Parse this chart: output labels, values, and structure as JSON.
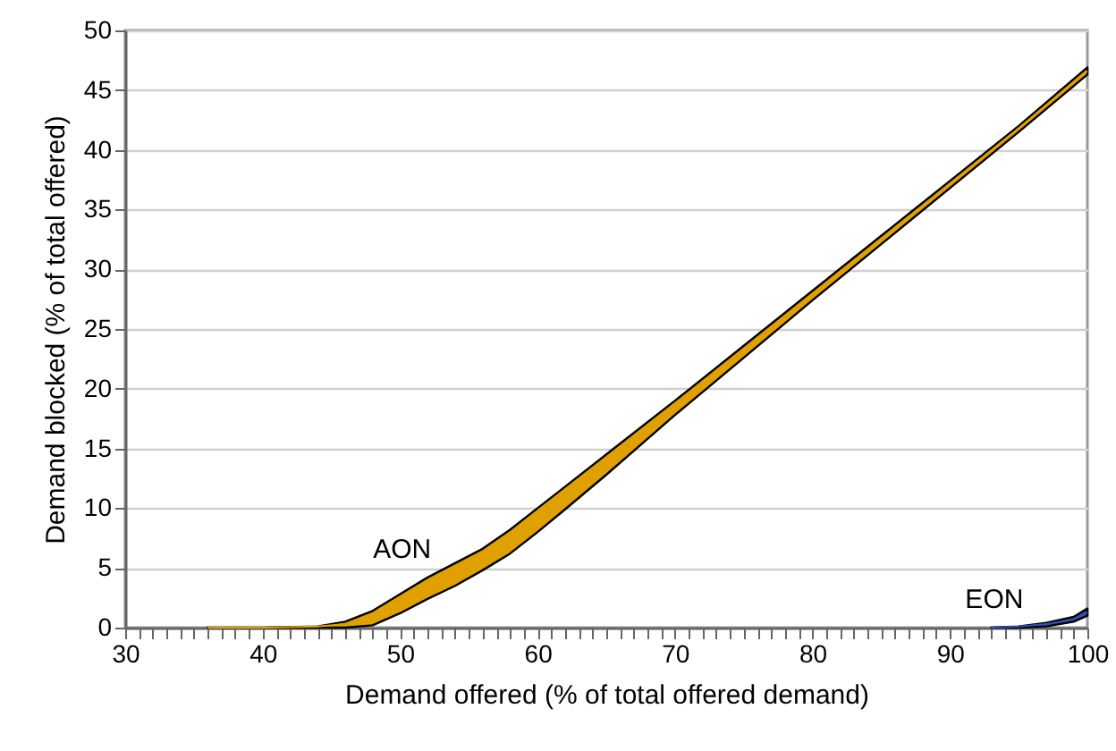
{
  "chart_data": {
    "type": "line",
    "xlabel": "Demand offered (% of total offered demand)",
    "ylabel": "Demand blocked (% of total offered)",
    "xlim": [
      30,
      100
    ],
    "ylim": [
      0,
      50
    ],
    "xticks": [
      30,
      {
        "value": 31,
        "label": null
      },
      {
        "value": 32,
        "label": null
      },
      {
        "value": 33,
        "label": null
      },
      {
        "value": 34,
        "label": null
      },
      {
        "value": 35,
        "label": null
      },
      {
        "value": 36,
        "label": null
      },
      {
        "value": 37,
        "label": null
      },
      {
        "value": 38,
        "label": null
      },
      {
        "value": 39,
        "label": null
      },
      40,
      {
        "value": 41,
        "label": null
      },
      {
        "value": 42,
        "label": null
      },
      {
        "value": 43,
        "label": null
      },
      {
        "value": 44,
        "label": null
      },
      {
        "value": 45,
        "label": null
      },
      {
        "value": 46,
        "label": null
      },
      {
        "value": 47,
        "label": null
      },
      {
        "value": 48,
        "label": null
      },
      {
        "value": 49,
        "label": null
      },
      50,
      {
        "value": 51,
        "label": null
      },
      {
        "value": 52,
        "label": null
      },
      {
        "value": 53,
        "label": null
      },
      {
        "value": 54,
        "label": null
      },
      {
        "value": 55,
        "label": null
      },
      {
        "value": 56,
        "label": null
      },
      {
        "value": 57,
        "label": null
      },
      {
        "value": 58,
        "label": null
      },
      {
        "value": 59,
        "label": null
      },
      60,
      {
        "value": 61,
        "label": null
      },
      {
        "value": 62,
        "label": null
      },
      {
        "value": 63,
        "label": null
      },
      {
        "value": 64,
        "label": null
      },
      {
        "value": 65,
        "label": null
      },
      {
        "value": 66,
        "label": null
      },
      {
        "value": 67,
        "label": null
      },
      {
        "value": 68,
        "label": null
      },
      {
        "value": 69,
        "label": null
      },
      70,
      {
        "value": 71,
        "label": null
      },
      {
        "value": 72,
        "label": null
      },
      {
        "value": 73,
        "label": null
      },
      {
        "value": 74,
        "label": null
      },
      {
        "value": 75,
        "label": null
      },
      {
        "value": 76,
        "label": null
      },
      {
        "value": 77,
        "label": null
      },
      {
        "value": 78,
        "label": null
      },
      {
        "value": 79,
        "label": null
      },
      80,
      {
        "value": 81,
        "label": null
      },
      {
        "value": 82,
        "label": null
      },
      {
        "value": 83,
        "label": null
      },
      {
        "value": 84,
        "label": null
      },
      {
        "value": 85,
        "label": null
      },
      {
        "value": 86,
        "label": null
      },
      {
        "value": 87,
        "label": null
      },
      {
        "value": 88,
        "label": null
      },
      {
        "value": 89,
        "label": null
      },
      90,
      {
        "value": 91,
        "label": null
      },
      {
        "value": 92,
        "label": null
      },
      {
        "value": 93,
        "label": null
      },
      {
        "value": 94,
        "label": null
      },
      {
        "value": 95,
        "label": null
      },
      {
        "value": 96,
        "label": null
      },
      {
        "value": 97,
        "label": null
      },
      {
        "value": 98,
        "label": null
      },
      {
        "value": 99,
        "label": null
      },
      100
    ],
    "yticks": [
      0,
      5,
      10,
      15,
      20,
      25,
      30,
      35,
      40,
      45,
      50
    ],
    "grid": "y",
    "series": [
      {
        "name": "AON",
        "color": "#e0a000",
        "x": [
          36,
          40,
          44,
          46,
          48,
          50,
          52,
          54,
          56,
          58,
          60,
          62,
          65,
          70,
          75,
          80,
          85,
          90,
          95,
          100
        ],
        "values": [
          0,
          0,
          0.1,
          0.3,
          0.8,
          2,
          3.3,
          4.5,
          5.7,
          7.2,
          9,
          10.9,
          13.7,
          18.4,
          23.1,
          27.8,
          32.5,
          37.1,
          41.8,
          46.6
        ],
        "lower": [
          0,
          0,
          0,
          0,
          0.2,
          1.2,
          2.4,
          3.5,
          4.8,
          6.2,
          8,
          9.9,
          12.8,
          17.8,
          22.6,
          27.4,
          32.1,
          36.8,
          41.5,
          46.3
        ],
        "upper": [
          0,
          0,
          0.1,
          0.5,
          1.4,
          2.8,
          4.2,
          5.4,
          6.6,
          8.2,
          10,
          11.8,
          14.5,
          19,
          23.6,
          28.2,
          32.8,
          37.4,
          42,
          46.9
        ]
      },
      {
        "name": "EON",
        "color": "#3050b0",
        "x": [
          93,
          95,
          97,
          99,
          100
        ],
        "values": [
          0,
          0.1,
          0.3,
          0.7,
          1.3
        ],
        "lower": [
          0,
          0,
          0.1,
          0.5,
          1
        ],
        "upper": [
          0,
          0.1,
          0.4,
          0.9,
          1.6
        ]
      }
    ]
  }
}
